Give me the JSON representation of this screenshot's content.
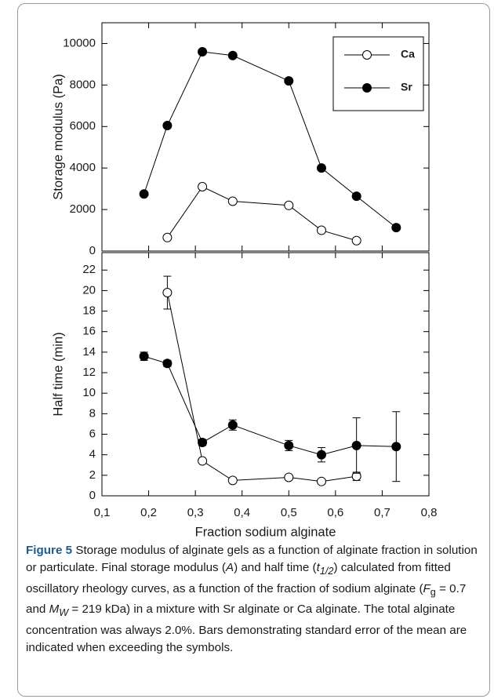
{
  "chart_data": [
    {
      "type": "line",
      "ylabel": "Storage modulus (Pa)",
      "xlim": [
        0.1,
        0.8
      ],
      "xticks": [
        0.1,
        0.2,
        0.3,
        0.4,
        0.5,
        0.6,
        0.7,
        0.8
      ],
      "ylim": [
        0,
        11000
      ],
      "yticks": [
        0,
        2000,
        4000,
        6000,
        8000,
        10000
      ],
      "legend": "upper right",
      "series": [
        {
          "name": "Ca",
          "color": "#000000",
          "marker_fill": "#ffffff",
          "x": [
            0.24,
            0.315,
            0.38,
            0.5,
            0.57,
            0.645
          ],
          "values": [
            650,
            3100,
            2400,
            2200,
            1000,
            500
          ]
        },
        {
          "name": "Sr",
          "color": "#000000",
          "marker_fill": "#000000",
          "x": [
            0.19,
            0.24,
            0.315,
            0.38,
            0.5,
            0.57,
            0.645,
            0.73
          ],
          "values": [
            2750,
            6050,
            9600,
            9420,
            8200,
            4000,
            2640,
            1130
          ]
        }
      ]
    },
    {
      "type": "line",
      "ylabel": "Half time (min)",
      "xlabel": "Fraction sodium alginate",
      "xlim": [
        0.1,
        0.8
      ],
      "xticks": [
        {
          "value": 0.1,
          "label": "0,1"
        },
        {
          "value": 0.2,
          "label": "0,2"
        },
        {
          "value": 0.3,
          "label": "0,3"
        },
        {
          "value": 0.4,
          "label": "0,4"
        },
        {
          "value": 0.5,
          "label": "0,5"
        },
        {
          "value": 0.6,
          "label": "0,6"
        },
        {
          "value": 0.7,
          "label": "0,7"
        },
        {
          "value": 0.8,
          "label": "0,8"
        }
      ],
      "ylim": [
        0,
        23.7
      ],
      "yticks": [
        0,
        2,
        4,
        6,
        8,
        10,
        12,
        14,
        16,
        18,
        20,
        22
      ],
      "series": [
        {
          "name": "Ca",
          "color": "#000000",
          "marker_fill": "#ffffff",
          "x": [
            0.24,
            0.315,
            0.38,
            0.5,
            0.57,
            0.645
          ],
          "values": [
            19.8,
            3.4,
            1.5,
            1.8,
            1.4,
            1.9
          ],
          "errors": [
            1.6,
            null,
            null,
            null,
            null,
            0.4
          ]
        },
        {
          "name": "Sr",
          "color": "#000000",
          "marker_fill": "#000000",
          "x": [
            0.19,
            0.24,
            0.315,
            0.38,
            0.5,
            0.57,
            0.645,
            0.73
          ],
          "values": [
            13.6,
            12.9,
            5.2,
            6.9,
            4.9,
            4.0,
            4.9,
            4.8
          ],
          "errors": [
            0.4,
            0.3,
            0.3,
            0.5,
            0.5,
            0.7,
            2.7,
            3.4
          ]
        }
      ]
    }
  ],
  "caption": {
    "label": "Figure 5",
    "parts": [
      "Storage modulus of alginate gels as a function of alginate fraction in solution or particulate. Final storage modulus (",
      "A",
      ") and half time (",
      "t",
      "1/2",
      ") calculated from fitted oscillatory rheology curves, as a function of the fraction of sodium alginate (",
      "F",
      "g",
      " = 0.7 and ",
      "M",
      "W",
      " = 219 kDa) in a mixture with Sr alginate or Ca alginate. The total alginate concentration was always 2.0%. Bars demonstrating standard error of the mean are indicated when exceeding the symbols."
    ]
  }
}
